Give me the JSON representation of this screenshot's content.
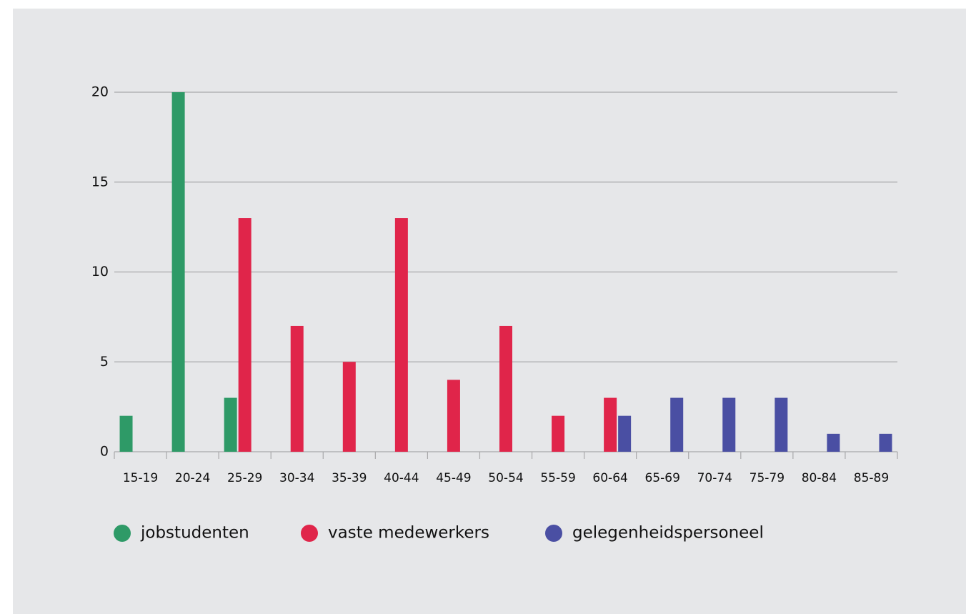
{
  "chart_data": {
    "type": "bar",
    "categories": [
      "15-19",
      "20-24",
      "25-29",
      "30-34",
      "35-39",
      "40-44",
      "45-49",
      "50-54",
      "55-59",
      "60-64",
      "65-69",
      "70-74",
      "75-79",
      "80-84",
      "85-89"
    ],
    "series": [
      {
        "name": "jobstudenten",
        "color": "#2e9a67",
        "values": [
          2,
          20,
          3,
          0,
          0,
          0,
          0,
          0,
          0,
          0,
          0,
          0,
          0,
          0,
          0
        ]
      },
      {
        "name": "vaste medewerkers",
        "color": "#e0254a",
        "values": [
          0,
          0,
          13,
          7,
          5,
          13,
          4,
          7,
          2,
          3,
          0,
          0,
          0,
          0,
          0
        ]
      },
      {
        "name": "gelegenheidspersoneel",
        "color": "#4a4fa3",
        "values": [
          0,
          0,
          0,
          0,
          0,
          0,
          0,
          0,
          0,
          2,
          3,
          3,
          3,
          1,
          1
        ]
      }
    ],
    "ylim": [
      0,
      20
    ],
    "yticks": [
      0,
      5,
      10,
      15,
      20
    ],
    "grid": true,
    "legend": "bottom"
  }
}
